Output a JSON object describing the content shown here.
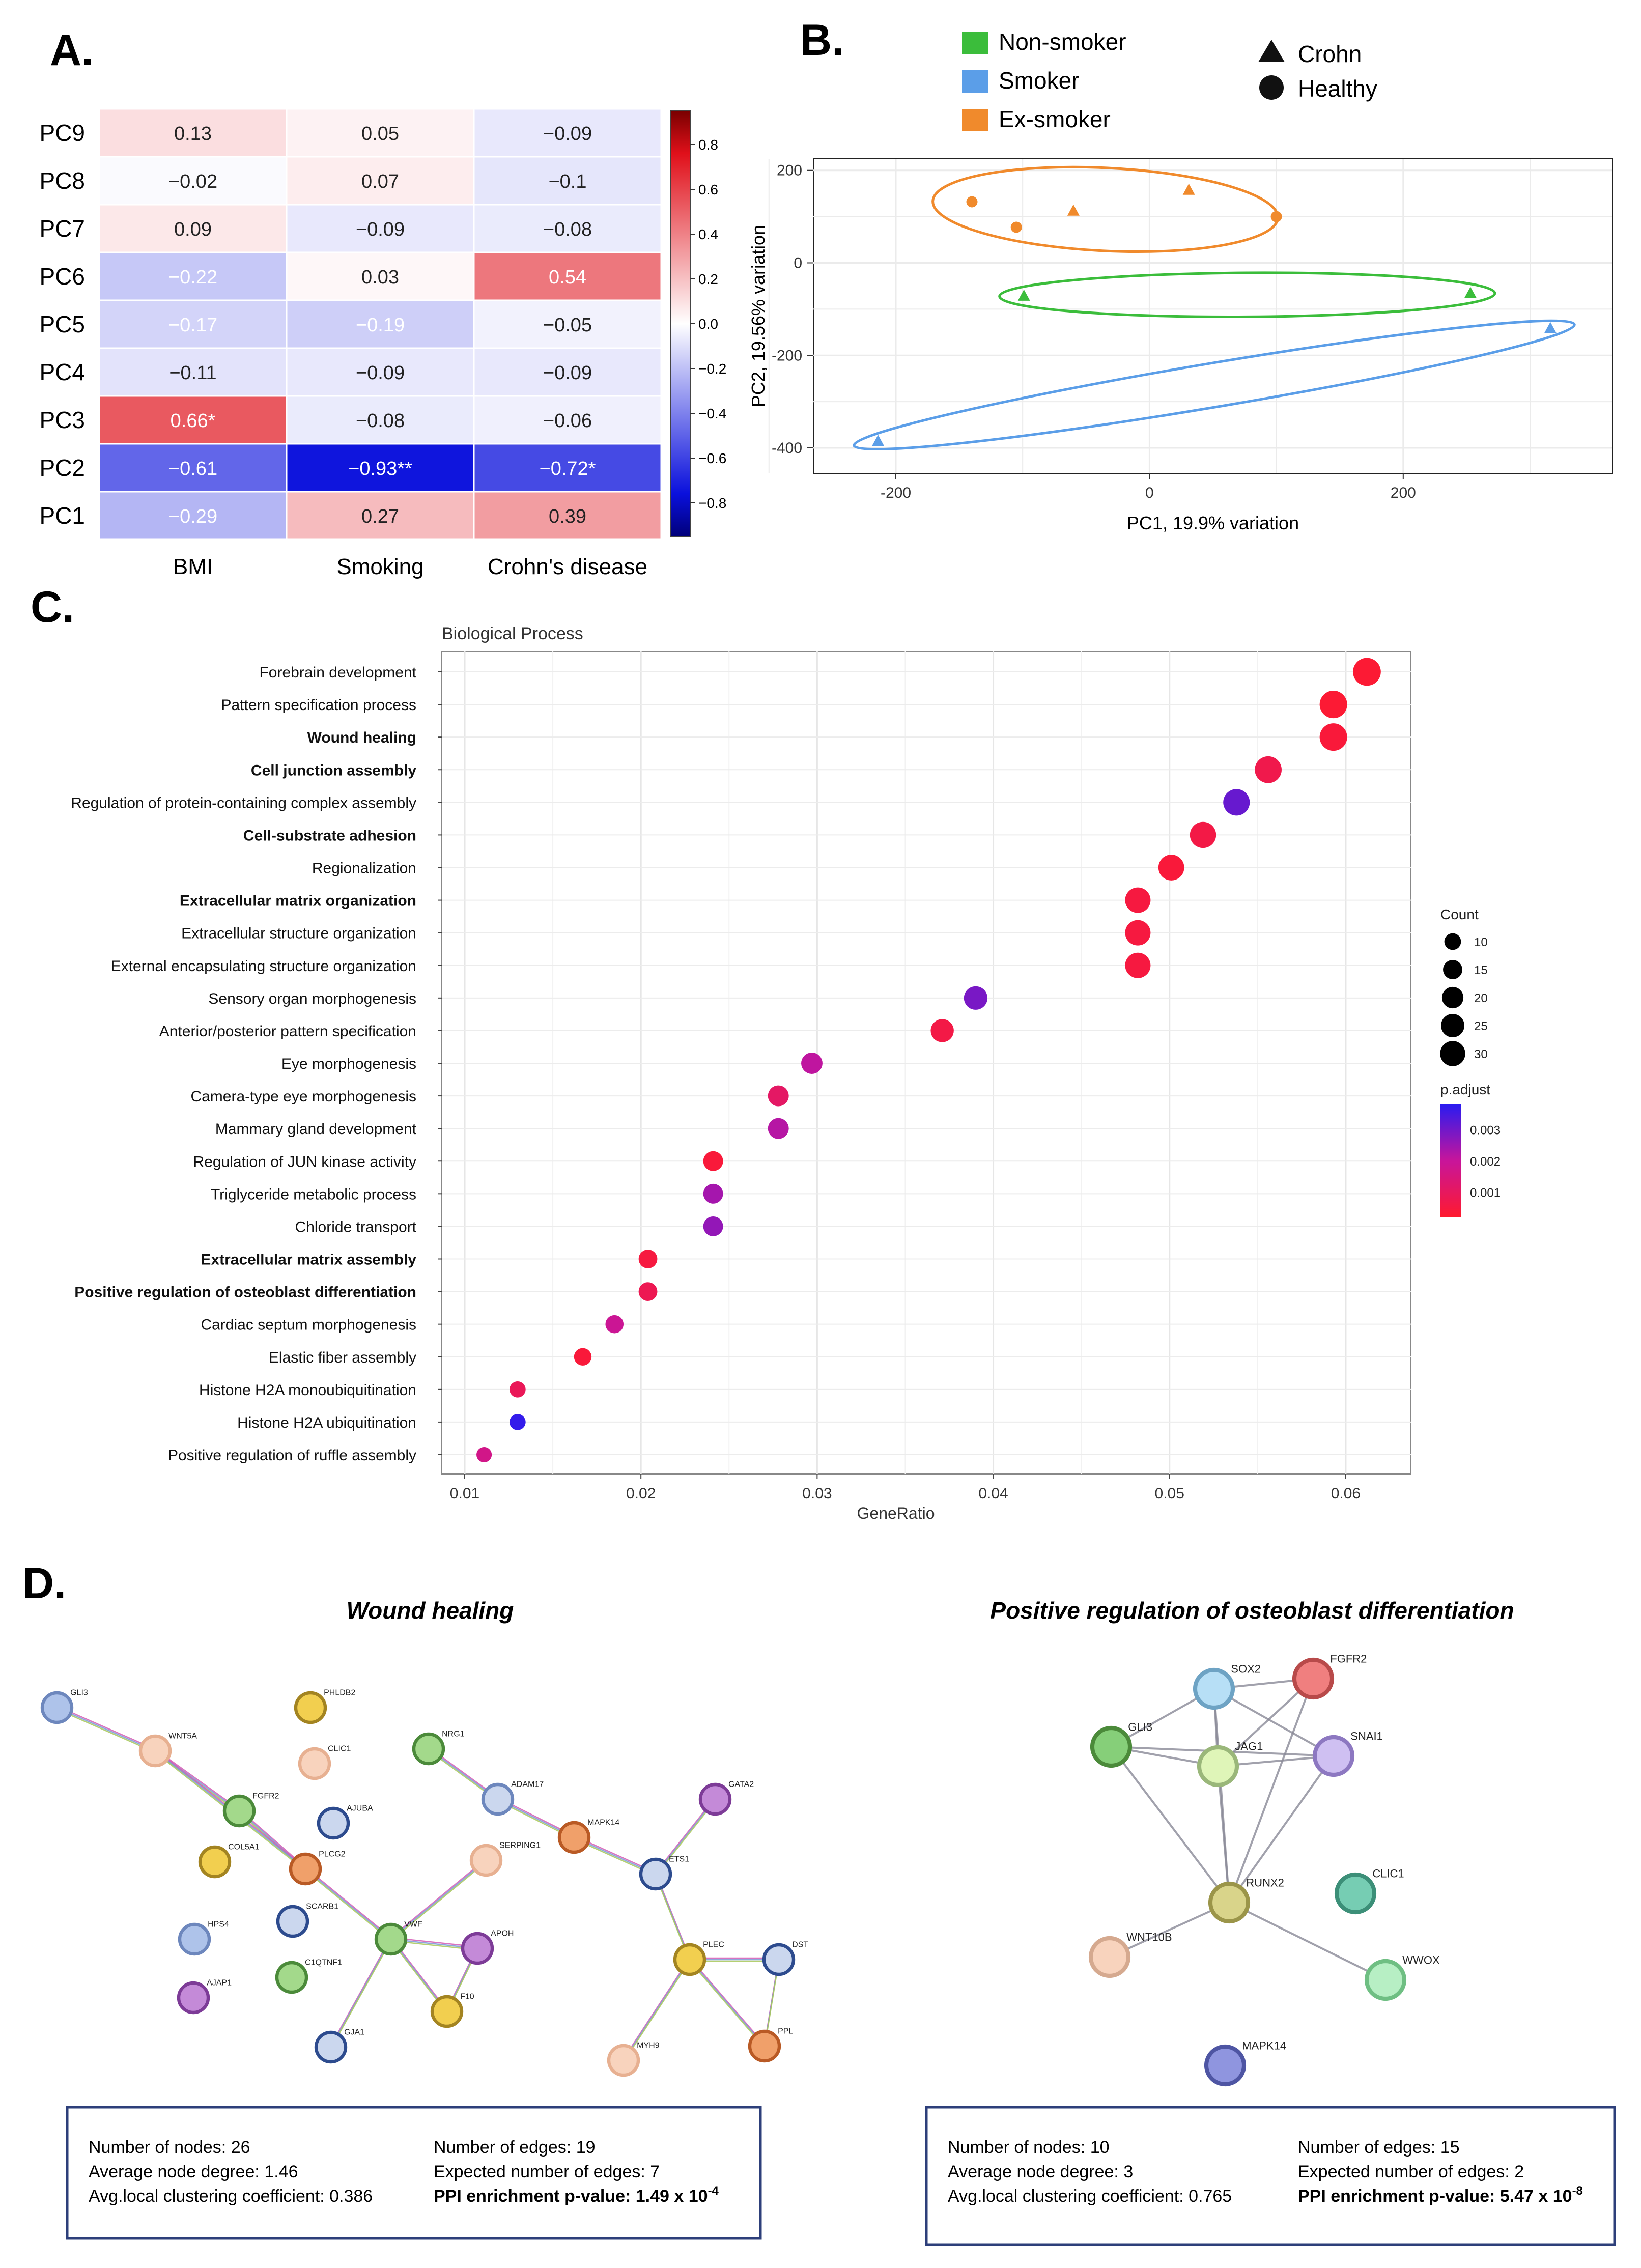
{
  "panels": {
    "a": "A.",
    "b": "B.",
    "c": "C.",
    "d": "D."
  },
  "colors": {
    "heat_neg": "#0a10dc",
    "heat_pos": "#e0101a",
    "non_smoker": "#3bbd3b",
    "smoker": "#5b9ee8",
    "ex_smoker": "#f08a2c",
    "padj_low": "#ff1a2e",
    "padj_high": "#2a1bf0",
    "box_border": "#2d3f7a"
  },
  "chart_data": [
    {
      "type": "heatmap",
      "rows": [
        "PC9",
        "PC8",
        "PC7",
        "PC6",
        "PC5",
        "PC4",
        "PC3",
        "PC2",
        "PC1"
      ],
      "columns": [
        "BMI",
        "Smoking",
        "Crohn's disease"
      ],
      "values": [
        [
          0.13,
          0.05,
          -0.09
        ],
        [
          -0.02,
          0.07,
          -0.1
        ],
        [
          0.09,
          -0.09,
          -0.08
        ],
        [
          -0.22,
          0.03,
          0.54
        ],
        [
          -0.17,
          -0.19,
          -0.05
        ],
        [
          -0.11,
          -0.09,
          -0.09
        ],
        [
          0.66,
          -0.08,
          -0.06
        ],
        [
          -0.61,
          -0.93,
          -0.72
        ],
        [
          -0.29,
          0.27,
          0.39
        ]
      ],
      "labels": [
        [
          "0.13",
          "0.05",
          "−0.09"
        ],
        [
          "−0.02",
          "0.07",
          "−0.1"
        ],
        [
          "0.09",
          "−0.09",
          "−0.08"
        ],
        [
          "−0.22",
          "0.03",
          "0.54"
        ],
        [
          "−0.17",
          "−0.19",
          "−0.05"
        ],
        [
          "−0.11",
          "−0.09",
          "−0.09"
        ],
        [
          "0.66*",
          "−0.08",
          "−0.06"
        ],
        [
          "−0.61",
          "−0.93**",
          "−0.72*"
        ],
        [
          "−0.29",
          "0.27",
          "0.39"
        ]
      ],
      "colorbar_ticks": [
        "0.8",
        "0.6",
        "0.4",
        "0.2",
        "0.0",
        "−0.2",
        "−0.4",
        "−0.6",
        "−0.8"
      ],
      "colorbar_values": [
        0.8,
        0.6,
        0.4,
        0.2,
        0.0,
        -0.2,
        -0.4,
        -0.6,
        -0.8
      ],
      "range": [
        -0.95,
        0.95
      ]
    },
    {
      "type": "scatter",
      "xlabel": "PC1, 19.9% variation",
      "ylabel": "PC2, 19.56% variation",
      "xlim": [
        -265,
        365
      ],
      "ylim": [
        -455,
        225
      ],
      "xticks": [
        -200,
        0,
        200
      ],
      "yticks": [
        200,
        0,
        -200,
        -400
      ],
      "grid": true,
      "legend_position": "top",
      "legend_groups": [
        "Non-smoker",
        "Smoker",
        "Ex-smoker"
      ],
      "legend_shapes": [
        "Crohn",
        "Healthy"
      ],
      "series": [
        {
          "name": "Non-smoker",
          "points": [
            {
              "x": -99,
              "y": -72,
              "shape": "Crohn"
            },
            {
              "x": 253,
              "y": -66,
              "shape": "Crohn"
            }
          ]
        },
        {
          "name": "Smoker",
          "points": [
            {
              "x": -214,
              "y": -386,
              "shape": "Crohn"
            },
            {
              "x": 316,
              "y": -142,
              "shape": "Crohn"
            }
          ]
        },
        {
          "name": "Ex-smoker",
          "points": [
            {
              "x": -140,
              "y": 132,
              "shape": "Healthy"
            },
            {
              "x": -105,
              "y": 77,
              "shape": "Healthy"
            },
            {
              "x": -60,
              "y": 112,
              "shape": "Crohn"
            },
            {
              "x": 31,
              "y": 157,
              "shape": "Crohn"
            },
            {
              "x": 100,
              "y": 100,
              "shape": "Healthy"
            }
          ]
        }
      ]
    },
    {
      "type": "scatter",
      "title": "Biological Process",
      "xlabel": "GeneRatio",
      "xlim": [
        0.0087,
        0.0637
      ],
      "xticks": [
        "0.01",
        "0.02",
        "0.03",
        "0.04",
        "0.05",
        "0.06"
      ],
      "xtick_values": [
        0.01,
        0.02,
        0.03,
        0.04,
        0.05,
        0.06
      ],
      "grid": true,
      "size_legend_title": "Count",
      "size_legend": [
        10,
        15,
        20,
        25,
        30
      ],
      "color_legend_title": "p.adjust",
      "color_legend_ticks": [
        "0.003",
        "0.002",
        "0.001"
      ],
      "color_legend_values": [
        0.003,
        0.002,
        0.001
      ],
      "color_range": [
        0.0002,
        0.0038
      ],
      "terms": [
        {
          "label": "Forebrain development",
          "bold": false,
          "gene_ratio": 0.0612,
          "count": 32,
          "p_adjust": 0.0003
        },
        {
          "label": "Pattern specification process",
          "bold": false,
          "gene_ratio": 0.0593,
          "count": 31,
          "p_adjust": 0.0003
        },
        {
          "label": "Wound healing",
          "bold": true,
          "gene_ratio": 0.0593,
          "count": 31,
          "p_adjust": 0.0004
        },
        {
          "label": "Cell junction assembly",
          "bold": true,
          "gene_ratio": 0.0556,
          "count": 29,
          "p_adjust": 0.0007
        },
        {
          "label": "Regulation of protein-containing complex assembly",
          "bold": false,
          "gene_ratio": 0.0538,
          "count": 28,
          "p_adjust": 0.0031
        },
        {
          "label": "Cell-substrate adhesion",
          "bold": true,
          "gene_ratio": 0.0519,
          "count": 27,
          "p_adjust": 0.0006
        },
        {
          "label": "Regionalization",
          "bold": false,
          "gene_ratio": 0.0501,
          "count": 26,
          "p_adjust": 0.0004
        },
        {
          "label": "Extracellular matrix organization",
          "bold": true,
          "gene_ratio": 0.0482,
          "count": 25,
          "p_adjust": 0.0005
        },
        {
          "label": "Extracellular structure organization",
          "bold": false,
          "gene_ratio": 0.0482,
          "count": 25,
          "p_adjust": 0.0005
        },
        {
          "label": "External encapsulating structure organization",
          "bold": false,
          "gene_ratio": 0.0482,
          "count": 25,
          "p_adjust": 0.0005
        },
        {
          "label": "Sensory organ morphogenesis",
          "bold": false,
          "gene_ratio": 0.039,
          "count": 20,
          "p_adjust": 0.0029
        },
        {
          "label": "Anterior/posterior pattern specification",
          "bold": false,
          "gene_ratio": 0.0371,
          "count": 19,
          "p_adjust": 0.0006
        },
        {
          "label": "Eye morphogenesis",
          "bold": false,
          "gene_ratio": 0.0297,
          "count": 15,
          "p_adjust": 0.0021
        },
        {
          "label": "Camera-type eye morphogenesis",
          "bold": false,
          "gene_ratio": 0.0278,
          "count": 14,
          "p_adjust": 0.0011
        },
        {
          "label": "Mammary gland development",
          "bold": false,
          "gene_ratio": 0.0278,
          "count": 14,
          "p_adjust": 0.0022
        },
        {
          "label": "Regulation of JUN kinase activity",
          "bold": false,
          "gene_ratio": 0.0241,
          "count": 12,
          "p_adjust": 0.0004
        },
        {
          "label": "Triglyceride metabolic process",
          "bold": false,
          "gene_ratio": 0.0241,
          "count": 12,
          "p_adjust": 0.0024
        },
        {
          "label": "Chloride transport",
          "bold": false,
          "gene_ratio": 0.0241,
          "count": 12,
          "p_adjust": 0.0026
        },
        {
          "label": "Extracellular matrix assembly",
          "bold": true,
          "gene_ratio": 0.0204,
          "count": 10,
          "p_adjust": 0.0005
        },
        {
          "label": "Positive regulation of osteoblast differentiation",
          "bold": true,
          "gene_ratio": 0.0204,
          "count": 10,
          "p_adjust": 0.0008
        },
        {
          "label": "Cardiac septum morphogenesis",
          "bold": false,
          "gene_ratio": 0.0185,
          "count": 9,
          "p_adjust": 0.0019
        },
        {
          "label": "Elastic fiber assembly",
          "bold": false,
          "gene_ratio": 0.0167,
          "count": 8,
          "p_adjust": 0.0004
        },
        {
          "label": "Histone H2A monoubiquitination",
          "bold": false,
          "gene_ratio": 0.013,
          "count": 6,
          "p_adjust": 0.0009
        },
        {
          "label": "Histone H2A ubiquitination",
          "bold": false,
          "gene_ratio": 0.013,
          "count": 6,
          "p_adjust": 0.0037
        },
        {
          "label": "Positive regulation of ruffle assembly",
          "bold": false,
          "gene_ratio": 0.0111,
          "count": 5,
          "p_adjust": 0.0017
        }
      ]
    }
  ],
  "networks": [
    {
      "title": "Wound healing",
      "nodes": [
        {
          "id": "GLI3",
          "color": "#aec3ea",
          "stroke": "#6d87bd"
        },
        {
          "id": "WNT5A",
          "color": "#f8d3bd",
          "stroke": "#e7b091"
        },
        {
          "id": "PHLDB2",
          "color": "#f2cf4f",
          "stroke": "#a38421"
        },
        {
          "id": "CLIC1",
          "color": "#f8d3bd",
          "stroke": "#e7b091"
        },
        {
          "id": "AJUBA",
          "color": "#cbd7ee",
          "stroke": "#2d4b8e"
        },
        {
          "id": "FGFR2",
          "color": "#a3d98b",
          "stroke": "#4b8a3a"
        },
        {
          "id": "COL5A1",
          "color": "#f2cf4f",
          "stroke": "#a38421"
        },
        {
          "id": "PLCG2",
          "color": "#f0a06a",
          "stroke": "#b95a25"
        },
        {
          "id": "SCARB1",
          "color": "#cbd7ee",
          "stroke": "#2d4b8e"
        },
        {
          "id": "HPS4",
          "color": "#aec3ea",
          "stroke": "#6d87bd"
        },
        {
          "id": "C1QTNF1",
          "color": "#a3d98b",
          "stroke": "#4b8a3a"
        },
        {
          "id": "AJAP1",
          "color": "#c48ad8",
          "stroke": "#7d3b97"
        },
        {
          "id": "VWF",
          "color": "#a3d98b",
          "stroke": "#4b8a3a"
        },
        {
          "id": "GJA1",
          "color": "#cbd7ee",
          "stroke": "#2d4b8e"
        },
        {
          "id": "F10",
          "color": "#f2cf4f",
          "stroke": "#a38421"
        },
        {
          "id": "APOH",
          "color": "#c48ad8",
          "stroke": "#7d3b97"
        },
        {
          "id": "SERPING1",
          "color": "#f8d3bd",
          "stroke": "#e7b091"
        },
        {
          "id": "NRG1",
          "color": "#a3d98b",
          "stroke": "#4b8a3a"
        },
        {
          "id": "ADAM17",
          "color": "#cbd7ee",
          "stroke": "#6d87bd"
        },
        {
          "id": "MAPK14",
          "color": "#f0a06a",
          "stroke": "#b95a25"
        },
        {
          "id": "ETS1",
          "color": "#cbd7ee",
          "stroke": "#2d4b8e"
        },
        {
          "id": "GATA2",
          "color": "#c48ad8",
          "stroke": "#7d3b97"
        },
        {
          "id": "PLEC",
          "color": "#f2cf4f",
          "stroke": "#a38421"
        },
        {
          "id": "DST",
          "color": "#cbd7ee",
          "stroke": "#2d4b8e"
        },
        {
          "id": "MYH9",
          "color": "#f8d3bd",
          "stroke": "#e7b091"
        },
        {
          "id": "PPL",
          "color": "#f0a06a",
          "stroke": "#b95a25"
        }
      ],
      "edges": [
        [
          "GLI3",
          "WNT5A"
        ],
        [
          "WNT5A",
          "FGFR2"
        ],
        [
          "FGFR2",
          "PLCG2"
        ],
        [
          "PLCG2",
          "VWF"
        ],
        [
          "VWF",
          "GJA1"
        ],
        [
          "VWF",
          "F10"
        ],
        [
          "VWF",
          "APOH"
        ],
        [
          "VWF",
          "SERPING1"
        ],
        [
          "APOH",
          "F10"
        ],
        [
          "NRG1",
          "ADAM17"
        ],
        [
          "ADAM17",
          "MAPK14"
        ],
        [
          "MAPK14",
          "ETS1"
        ],
        [
          "ETS1",
          "GATA2"
        ],
        [
          "ETS1",
          "PLEC"
        ],
        [
          "PLEC",
          "DST"
        ],
        [
          "PLEC",
          "PPL"
        ],
        [
          "DST",
          "PPL"
        ],
        [
          "PLEC",
          "MYH9"
        ],
        [
          "WNT5A",
          "PLCG2"
        ]
      ],
      "stats": {
        "nodes": "Number of nodes: 26",
        "degree": "Average node degree: 1.46",
        "clustering": "Avg.local clustering coefficient: 0.386",
        "edges": "Number of edges: 19",
        "expected": "Expected number of edges: 7",
        "ppi_label": "PPI enrichment p-value: 1.49 x 10",
        "ppi_exp": "-4"
      }
    },
    {
      "title": "Positive regulation of osteoblast differentiation",
      "nodes": [
        {
          "id": "SOX2",
          "color": "#b7dff6",
          "stroke": "#6ea3c4"
        },
        {
          "id": "FGFR2",
          "color": "#f07f7f",
          "stroke": "#b84a4a"
        },
        {
          "id": "GLI3",
          "color": "#86cf79",
          "stroke": "#4b8a3a"
        },
        {
          "id": "JAG1",
          "color": "#dff5b8",
          "stroke": "#9ab77a"
        },
        {
          "id": "SNAI1",
          "color": "#cfc0f2",
          "stroke": "#8d78c1"
        },
        {
          "id": "RUNX2",
          "color": "#d9d48a",
          "stroke": "#9b9549"
        },
        {
          "id": "CLIC1",
          "color": "#76cdb3",
          "stroke": "#3c8f78"
        },
        {
          "id": "WNT10B",
          "color": "#f8d3bd",
          "stroke": "#d5a98f"
        },
        {
          "id": "WWOX",
          "color": "#b7efc4",
          "stroke": "#6fbf83"
        },
        {
          "id": "MAPK14",
          "color": "#8f95df",
          "stroke": "#4e55a3"
        }
      ],
      "edges": [
        [
          "SOX2",
          "FGFR2"
        ],
        [
          "SOX2",
          "GLI3"
        ],
        [
          "SOX2",
          "JAG1"
        ],
        [
          "SOX2",
          "RUNX2"
        ],
        [
          "SOX2",
          "SNAI1"
        ],
        [
          "FGFR2",
          "JAG1"
        ],
        [
          "FGFR2",
          "RUNX2"
        ],
        [
          "GLI3",
          "JAG1"
        ],
        [
          "GLI3",
          "SNAI1"
        ],
        [
          "GLI3",
          "RUNX2"
        ],
        [
          "JAG1",
          "SNAI1"
        ],
        [
          "JAG1",
          "RUNX2"
        ],
        [
          "SNAI1",
          "RUNX2"
        ],
        [
          "RUNX2",
          "WNT10B"
        ],
        [
          "RUNX2",
          "WWOX"
        ]
      ],
      "stats": {
        "nodes": "Number of nodes: 10",
        "degree": "Average node degree: 3",
        "clustering": "Avg.local clustering coefficient: 0.765",
        "edges": "Number of edges: 15",
        "expected": "Expected number of edges: 2",
        "ppi_label": "PPI enrichment p-value: 5.47 x 10",
        "ppi_exp": "-8"
      }
    }
  ]
}
